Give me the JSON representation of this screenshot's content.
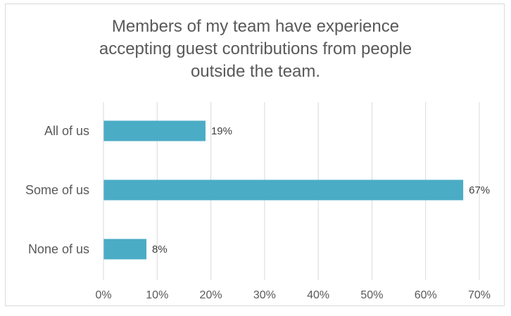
{
  "chart_data": {
    "type": "bar",
    "orientation": "horizontal",
    "title_lines": [
      "Members of my team have experience",
      "accepting guest contributions from people",
      "outside the team."
    ],
    "categories": [
      "All of us",
      "Some of us",
      "None of us"
    ],
    "values": [
      19,
      67,
      8
    ],
    "value_labels": [
      "19%",
      "67%",
      "8%"
    ],
    "xlim": [
      0,
      70
    ],
    "ticks": [
      0,
      10,
      20,
      30,
      40,
      50,
      60,
      70
    ],
    "tick_labels": [
      "0%",
      "10%",
      "20%",
      "30%",
      "40%",
      "50%",
      "60%",
      "70%"
    ],
    "grid": true,
    "legend": "none",
    "xlabel": "",
    "ylabel": "",
    "colors": {
      "bar": "#4bacc6",
      "grid": "#d9d9d9",
      "text": "#595959",
      "data_label": "#404040"
    }
  }
}
